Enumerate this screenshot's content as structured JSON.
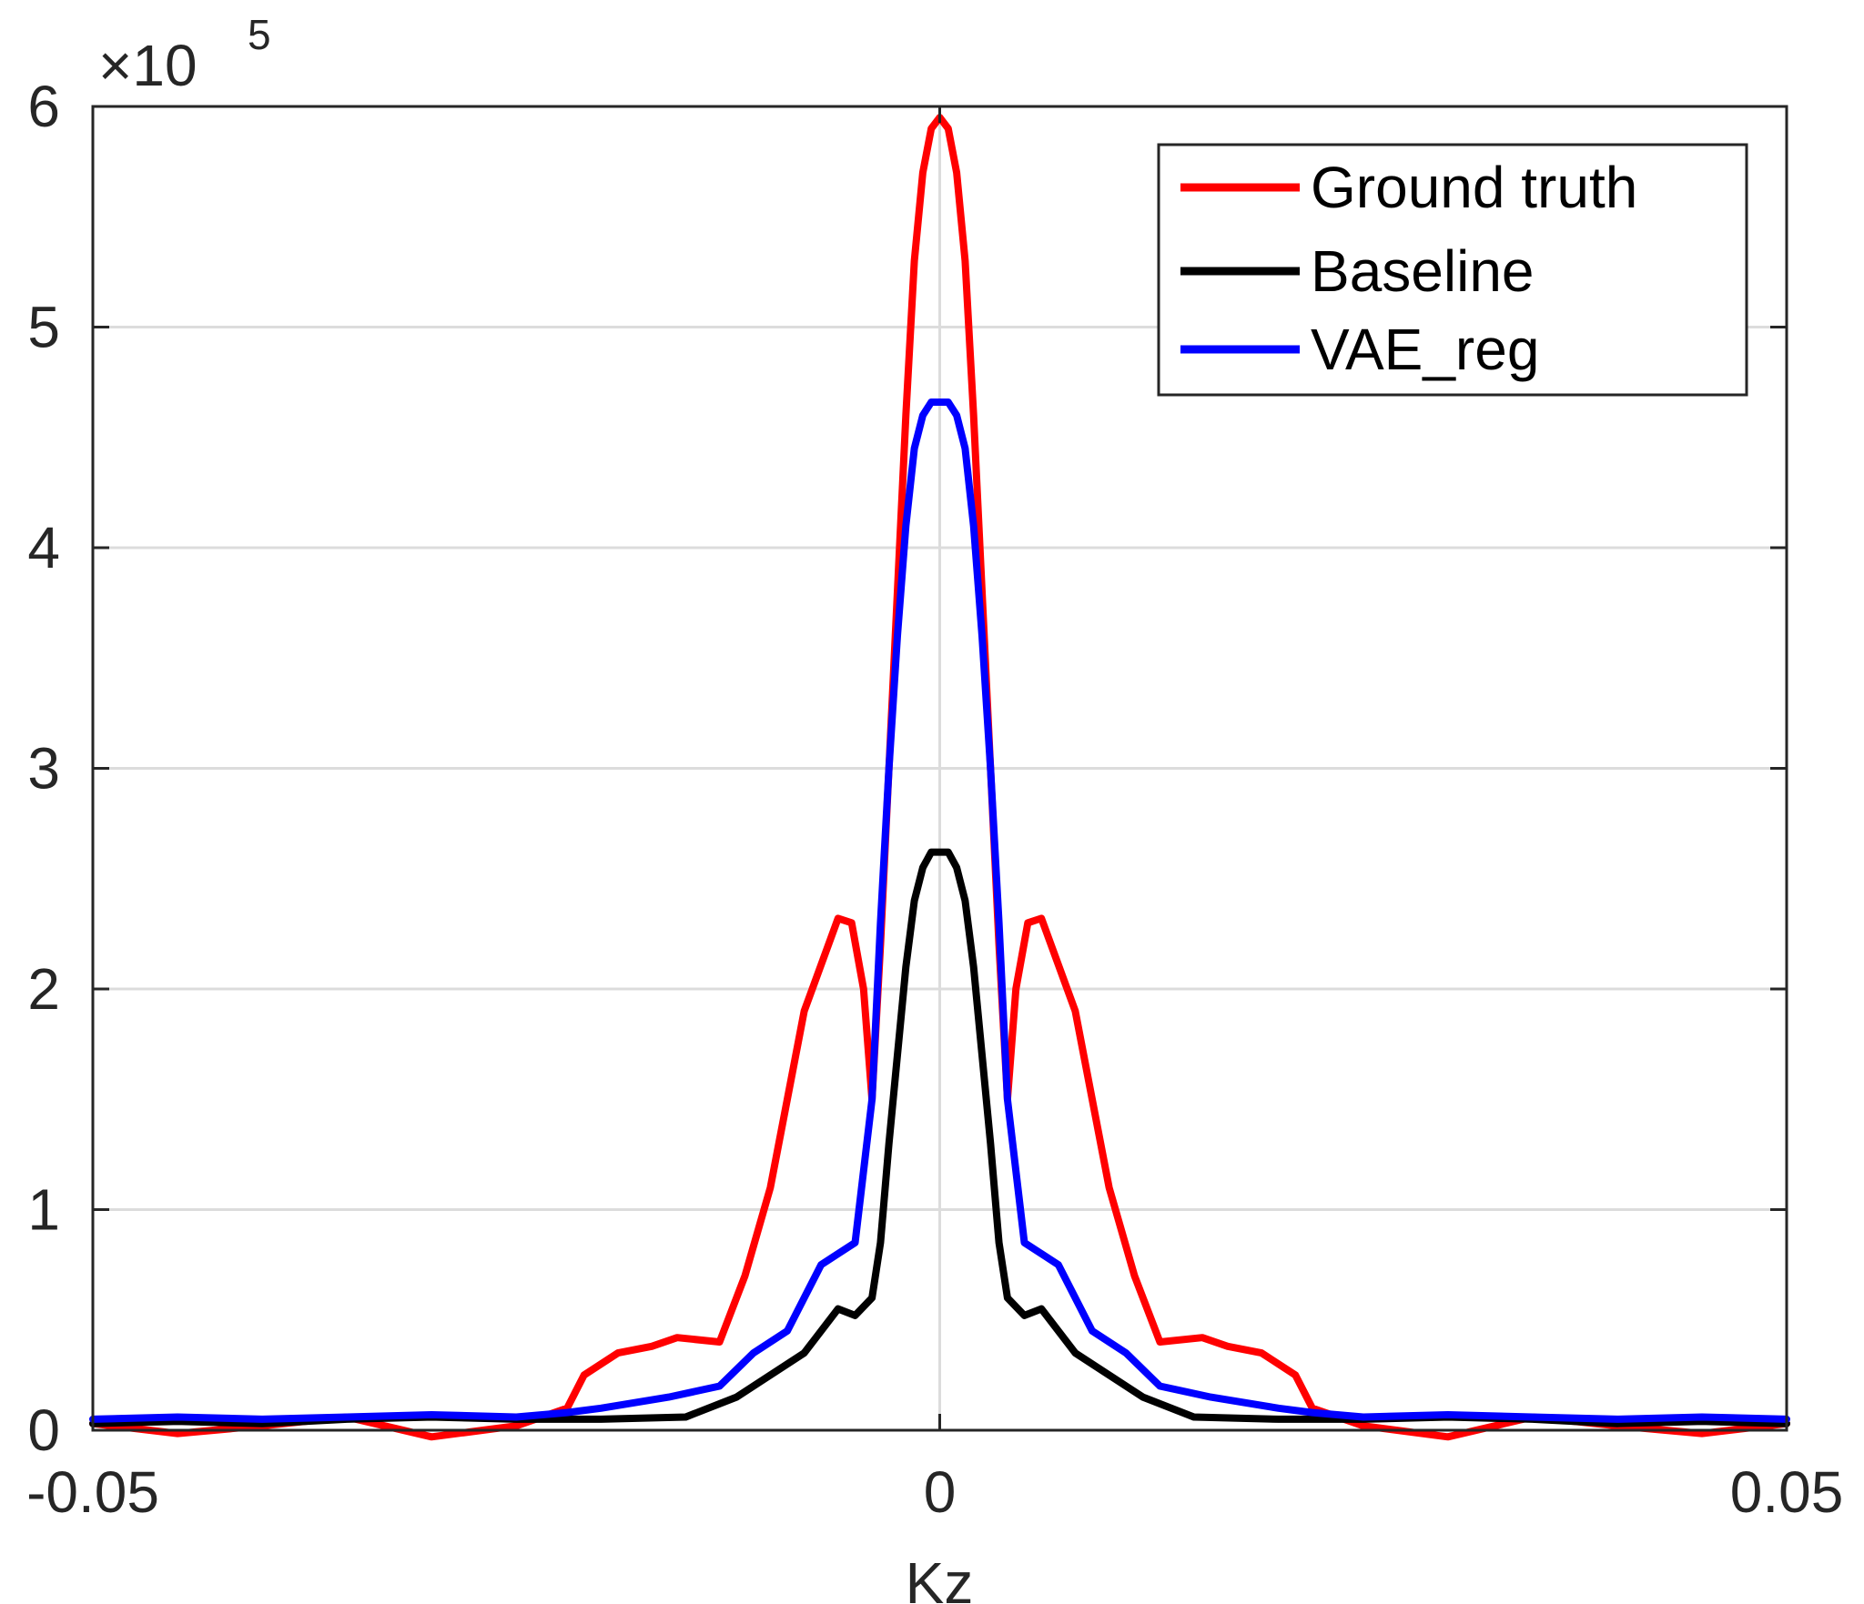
{
  "chart_data": {
    "type": "line",
    "title": "",
    "xlabel": "Kz",
    "ylabel": "",
    "xlim": [
      -0.05,
      0.05
    ],
    "ylim": [
      0,
      600000
    ],
    "y_multiplier_base": "×10",
    "y_multiplier_exponent": "5",
    "x_ticks": [
      -0.05,
      0,
      0.05
    ],
    "x_tick_labels": [
      "-0.05",
      "0",
      "0.05"
    ],
    "y_ticks": [
      0,
      100000,
      200000,
      300000,
      400000,
      500000,
      600000
    ],
    "y_tick_labels": [
      "0",
      "1",
      "2",
      "3",
      "4",
      "5",
      "6"
    ],
    "grid": true,
    "legend_position": "top-right",
    "series": [
      {
        "name": "Ground truth",
        "color": "#ff0000",
        "x": [
          -0.05,
          -0.045,
          -0.04,
          -0.035,
          -0.03,
          -0.025,
          -0.022,
          -0.021,
          -0.019,
          -0.017,
          -0.0155,
          -0.013,
          -0.0115,
          -0.01,
          -0.008,
          -0.006,
          -0.0052,
          -0.0045,
          -0.004,
          -0.0035,
          -0.003,
          -0.0025,
          -0.002,
          -0.0015,
          -0.001,
          -0.0005,
          0,
          0.0005,
          0.001,
          0.0015,
          0.002,
          0.0025,
          0.003,
          0.0035,
          0.004,
          0.0045,
          0.0052,
          0.006,
          0.008,
          0.01,
          0.0115,
          0.013,
          0.0155,
          0.017,
          0.019,
          0.021,
          0.022,
          0.025,
          0.03,
          0.035,
          0.04,
          0.045,
          0.05
        ],
        "values": [
          3000,
          -1500,
          2000,
          6000,
          -3000,
          2000,
          10000,
          25000,
          35000,
          38000,
          42000,
          40000,
          70000,
          110000,
          190000,
          232000,
          230000,
          200000,
          150000,
          220000,
          300000,
          380000,
          460000,
          530000,
          570000,
          590000,
          595000,
          590000,
          570000,
          530000,
          460000,
          380000,
          300000,
          220000,
          150000,
          200000,
          230000,
          232000,
          190000,
          110000,
          70000,
          40000,
          42000,
          38000,
          35000,
          25000,
          10000,
          2000,
          -3000,
          6000,
          2000,
          -1500,
          3000
        ]
      },
      {
        "name": "Baseline",
        "color": "#000000",
        "x": [
          -0.05,
          -0.045,
          -0.04,
          -0.035,
          -0.03,
          -0.025,
          -0.02,
          -0.015,
          -0.012,
          -0.01,
          -0.008,
          -0.006,
          -0.005,
          -0.004,
          -0.0035,
          -0.003,
          -0.0025,
          -0.002,
          -0.0015,
          -0.001,
          -0.0005,
          0,
          0.0005,
          0.001,
          0.0015,
          0.002,
          0.0025,
          0.003,
          0.0035,
          0.004,
          0.005,
          0.006,
          0.008,
          0.01,
          0.012,
          0.015,
          0.02,
          0.025,
          0.03,
          0.035,
          0.04,
          0.045,
          0.05
        ],
        "values": [
          3000,
          4000,
          3000,
          5000,
          6000,
          5000,
          5000,
          6000,
          15000,
          25000,
          35000,
          55000,
          52000,
          60000,
          85000,
          130000,
          170000,
          210000,
          240000,
          255000,
          262000,
          262000,
          262000,
          255000,
          240000,
          210000,
          170000,
          130000,
          85000,
          60000,
          52000,
          55000,
          35000,
          25000,
          15000,
          6000,
          5000,
          5000,
          6000,
          5000,
          3000,
          4000,
          3000
        ]
      },
      {
        "name": "VAE_reg",
        "color": "#0000ff",
        "x": [
          -0.05,
          -0.045,
          -0.04,
          -0.035,
          -0.03,
          -0.025,
          -0.022,
          -0.02,
          -0.016,
          -0.013,
          -0.011,
          -0.009,
          -0.007,
          -0.006,
          -0.005,
          -0.004,
          -0.0035,
          -0.003,
          -0.0025,
          -0.002,
          -0.0015,
          -0.001,
          -0.0005,
          0,
          0.0005,
          0.001,
          0.0015,
          0.002,
          0.0025,
          0.003,
          0.0035,
          0.004,
          0.005,
          0.006,
          0.007,
          0.009,
          0.011,
          0.013,
          0.016,
          0.02,
          0.022,
          0.025,
          0.03,
          0.035,
          0.04,
          0.045,
          0.05
        ],
        "values": [
          5000,
          6000,
          5000,
          6000,
          7000,
          6000,
          8000,
          10000,
          15000,
          20000,
          35000,
          45000,
          75000,
          80000,
          85000,
          150000,
          230000,
          300000,
          360000,
          410000,
          445000,
          460000,
          466000,
          466000,
          466000,
          460000,
          445000,
          410000,
          360000,
          300000,
          230000,
          150000,
          85000,
          80000,
          75000,
          45000,
          35000,
          20000,
          15000,
          10000,
          8000,
          6000,
          7000,
          6000,
          5000,
          6000,
          5000
        ]
      }
    ]
  }
}
